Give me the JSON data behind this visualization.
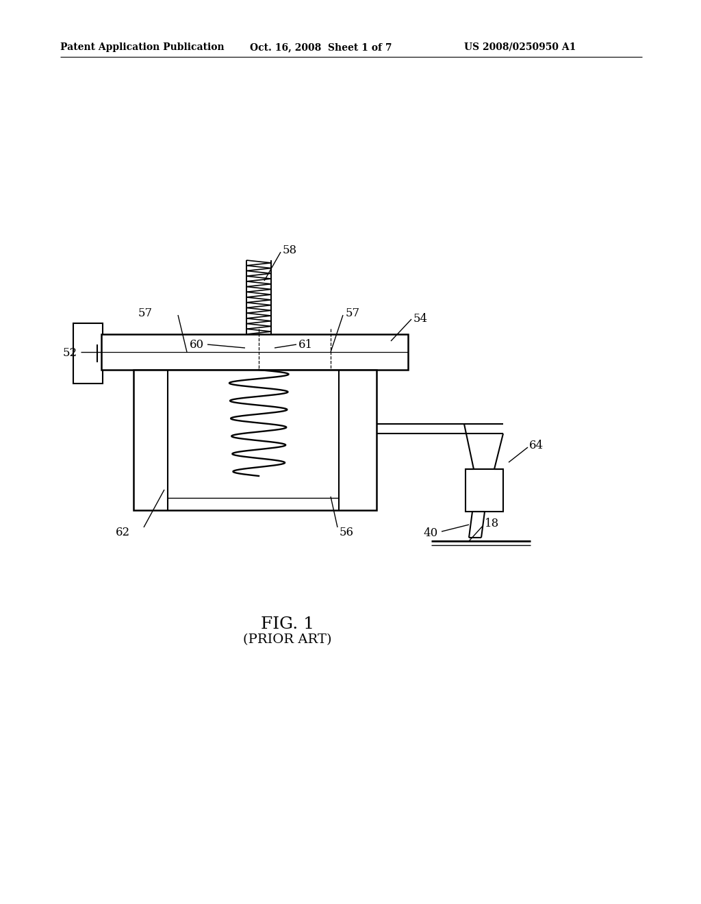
{
  "bg_color": "#ffffff",
  "line_color": "#000000",
  "header_left": "Patent Application Publication",
  "header_mid": "Oct. 16, 2008  Sheet 1 of 7",
  "header_right": "US 2008/0250950 A1",
  "fig_label": "FIG. 1",
  "fig_sublabel": "(PRIOR ART)"
}
